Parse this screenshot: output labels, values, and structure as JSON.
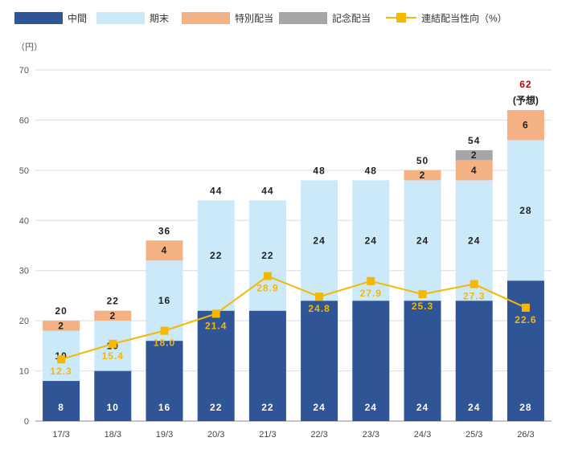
{
  "chart_data": {
    "type": "bar",
    "stacked": true,
    "unit_label": "（円）",
    "ylim": [
      0,
      70
    ],
    "yticks": [
      0,
      10,
      20,
      30,
      40,
      50,
      60,
      70
    ],
    "grid": true,
    "categories": [
      "17/3",
      "18/3",
      "19/3",
      "20/3",
      "21/3",
      "22/3",
      "23/3",
      "24/3",
      "25/3",
      "26/3"
    ],
    "series": [
      {
        "name": "中間",
        "color": "#2f5597",
        "label_color": "#ffffff",
        "values": [
          8,
          10,
          16,
          22,
          22,
          24,
          24,
          24,
          24,
          28
        ]
      },
      {
        "name": "期末",
        "color": "#cbe9f8",
        "label_color": "#222222",
        "values": [
          10,
          10,
          16,
          22,
          22,
          24,
          24,
          24,
          24,
          28
        ]
      },
      {
        "name": "特別配当",
        "color": "#f4b183",
        "label_color": "#222222",
        "values": [
          2,
          2,
          4,
          null,
          null,
          null,
          null,
          2,
          4,
          6
        ]
      },
      {
        "name": "記念配当",
        "color": "#a6a6a6",
        "label_color": "#222222",
        "values": [
          null,
          null,
          null,
          null,
          null,
          null,
          null,
          null,
          2,
          null
        ]
      }
    ],
    "totals": [
      "20",
      "22",
      "36",
      "44",
      "44",
      "48",
      "48",
      "50",
      "54",
      "62"
    ],
    "total_note": "(予想)",
    "highlight_last_total_color": "#c00000",
    "line": {
      "name": "連結配当性向（%）",
      "color": "#f5b800",
      "values": [
        12.3,
        15.4,
        18.0,
        21.4,
        28.9,
        24.8,
        27.9,
        25.3,
        27.3,
        22.6
      ],
      "labels": [
        "12.3",
        "15.4",
        "18.0",
        "21.4",
        "28.9",
        "24.8",
        "27.9",
        "25.3",
        "27.3",
        "22.6"
      ]
    }
  }
}
